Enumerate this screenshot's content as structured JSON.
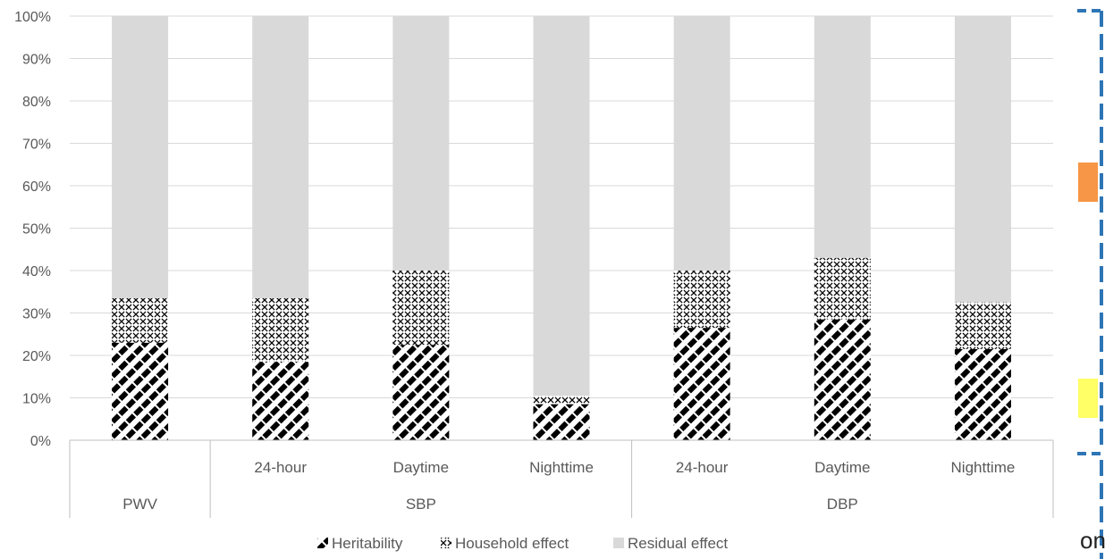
{
  "chart_data": {
    "type": "bar",
    "stacked": true,
    "percent": true,
    "title": "",
    "xlabel": "",
    "ylabel": "",
    "ylim": [
      0,
      100
    ],
    "yticks": [
      "0%",
      "10%",
      "20%",
      "30%",
      "40%",
      "50%",
      "60%",
      "70%",
      "80%",
      "90%",
      "100%"
    ],
    "categories": [
      {
        "label": "",
        "group": "PWV"
      },
      {
        "label": "24-hour",
        "group": "SBP"
      },
      {
        "label": "Daytime",
        "group": "SBP"
      },
      {
        "label": "Nighttime",
        "group": "SBP"
      },
      {
        "label": "24-hour",
        "group": "DBP"
      },
      {
        "label": "Daytime",
        "group": "DBP"
      },
      {
        "label": "Nighttime",
        "group": "DBP"
      }
    ],
    "groups": [
      {
        "name": "PWV",
        "span": 1
      },
      {
        "name": "SBP",
        "span": 3
      },
      {
        "name": "DBP",
        "span": 3
      }
    ],
    "series": [
      {
        "name": "Heritability",
        "values": [
          23,
          18.5,
          22.5,
          8.5,
          26.5,
          28.5,
          21.5
        ],
        "pattern": "diagonal-hatch"
      },
      {
        "name": "Household effect",
        "values": [
          10.5,
          15,
          17.5,
          2,
          13.5,
          14.5,
          11
        ],
        "pattern": "crosshatch"
      },
      {
        "name": "Residual effect",
        "values": [
          66.5,
          66.5,
          60,
          89.5,
          60,
          57,
          67.5
        ],
        "pattern": "solid",
        "color": "#d9d9d9"
      }
    ],
    "grid": true,
    "legend": "bottom"
  },
  "edge": {
    "text": "on",
    "colors": {
      "border": "#2e75b6",
      "orange": "#f79646",
      "yellow": "#ffff66"
    }
  }
}
